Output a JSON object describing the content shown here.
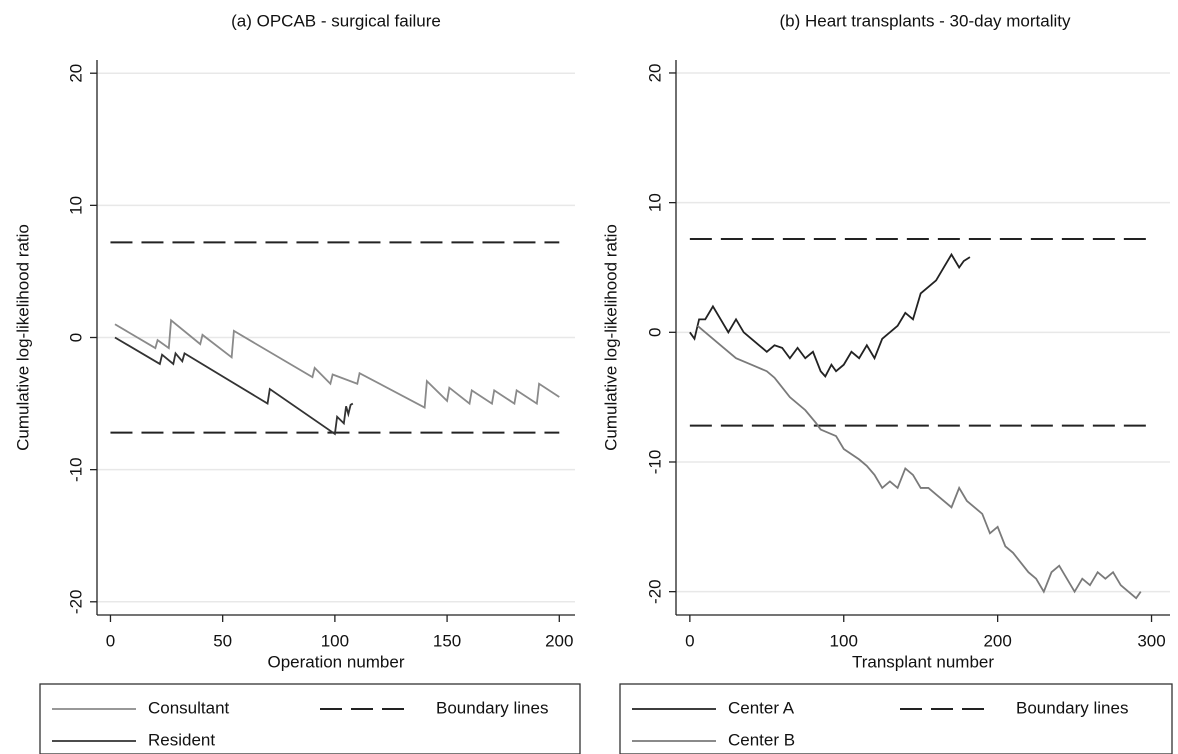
{
  "chart_data": [
    {
      "type": "line",
      "title": "(a)  OPCAB - surgical failure",
      "x_label": "Operation number",
      "y_label": "Cumulative log-likelihood ratio",
      "xlim": [
        -6,
        207
      ],
      "ylim": [
        -21,
        21
      ],
      "xticks": [
        0,
        50,
        100,
        150,
        200
      ],
      "yticks": [
        -20,
        -10,
        0,
        10,
        20
      ],
      "grid": true,
      "series": [
        {
          "name": "Consultant",
          "color": "#8a8a8a",
          "x": [
            2,
            20,
            21,
            26,
            27,
            40,
            41,
            54,
            55,
            90,
            91,
            98,
            99,
            110,
            111,
            140,
            141,
            150,
            151,
            160,
            161,
            170,
            171,
            180,
            181,
            190,
            191,
            200
          ],
          "values": [
            1,
            -0.8,
            -0.2,
            -0.8,
            1.3,
            -0.5,
            0.2,
            -1.5,
            0.5,
            -3,
            -2.3,
            -3.5,
            -2.8,
            -3.5,
            -2.7,
            -5.3,
            -3.3,
            -4.8,
            -3.8,
            -5,
            -4,
            -5,
            -4,
            -5,
            -4,
            -5,
            -3.5,
            -4.5
          ]
        },
        {
          "name": "Resident",
          "color": "#333333",
          "x": [
            2,
            22,
            23,
            28,
            29,
            32,
            33,
            70,
            71,
            100,
            101,
            104,
            105,
            106,
            107,
            108
          ],
          "values": [
            0,
            -2,
            -1.3,
            -2,
            -1.2,
            -1.8,
            -1.2,
            -5,
            -3.9,
            -7.3,
            -6,
            -6.5,
            -5.2,
            -5.8,
            -5.1,
            -5
          ]
        }
      ],
      "boundary": {
        "name": "Boundary lines",
        "color": "#222222",
        "values": [
          7.2,
          -7.2
        ]
      }
    },
    {
      "type": "line",
      "title": "(b) Heart transplants - 30-day mortality",
      "x_label": "Transplant number",
      "y_label": "Cumulative log-likelihood ratio",
      "xlim": [
        -9,
        312
      ],
      "ylim": [
        -21.8,
        21
      ],
      "xticks": [
        0,
        100,
        200,
        300
      ],
      "yticks": [
        -20,
        -10,
        0,
        10,
        20
      ],
      "grid": true,
      "series": [
        {
          "name": "Center A",
          "color": "#222222",
          "x": [
            0,
            3,
            6,
            10,
            15,
            20,
            25,
            30,
            35,
            40,
            45,
            50,
            55,
            60,
            65,
            70,
            75,
            80,
            85,
            88,
            92,
            95,
            100,
            105,
            110,
            115,
            120,
            125,
            130,
            135,
            140,
            145,
            150,
            155,
            160,
            165,
            170,
            175,
            178,
            182
          ],
          "values": [
            0,
            -0.5,
            1,
            1,
            2,
            1,
            0,
            1,
            0,
            -0.5,
            -1,
            -1.5,
            -1,
            -1.2,
            -2,
            -1.2,
            -2,
            -1.5,
            -3,
            -3.4,
            -2.5,
            -3,
            -2.5,
            -1.5,
            -2,
            -1,
            -2,
            -0.5,
            0,
            0.5,
            1.5,
            1,
            3,
            3.5,
            4,
            5,
            6,
            5,
            5.5,
            5.8
          ]
        },
        {
          "name": "Center B",
          "color": "#7a7a7a",
          "x": [
            5,
            10,
            20,
            30,
            40,
            50,
            55,
            65,
            75,
            82,
            85,
            95,
            100,
            110,
            115,
            120,
            125,
            130,
            135,
            140,
            145,
            150,
            155,
            160,
            170,
            175,
            180,
            190,
            195,
            200,
            205,
            210,
            220,
            225,
            230,
            235,
            240,
            245,
            250,
            255,
            260,
            265,
            270,
            275,
            280,
            285,
            290,
            293
          ],
          "values": [
            0.5,
            0,
            -1,
            -2,
            -2.5,
            -3,
            -3.5,
            -5,
            -6,
            -7,
            -7.5,
            -8,
            -9,
            -9.8,
            -10.3,
            -11,
            -12,
            -11.5,
            -12,
            -10.5,
            -11,
            -12,
            -12,
            -12.5,
            -13.5,
            -12,
            -13,
            -14,
            -15.5,
            -15,
            -16.5,
            -17,
            -18.5,
            -19,
            -20,
            -18.5,
            -18,
            -19,
            -20,
            -19,
            -19.5,
            -18.5,
            -19,
            -18.5,
            -19.5,
            -20,
            -20.5,
            -20
          ]
        }
      ],
      "boundary": {
        "name": "Boundary lines",
        "color": "#222222",
        "values": [
          7.2,
          -7.2
        ]
      }
    }
  ]
}
